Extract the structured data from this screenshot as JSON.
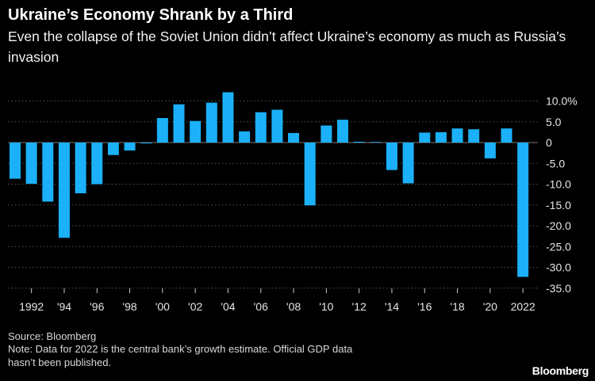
{
  "header": {
    "title": "Ukraine’s Economy Shrank by a Third",
    "subtitle": "Even the collapse of the Soviet Union didn’t affect Ukraine’s economy as much as Russia’s invasion"
  },
  "footer": {
    "source": "Source: Bloomberg",
    "note_line1": "Note: Data for 2022 is the central bank’s growth estimate. Official GDP data",
    "note_line2": "hasn’t been published.",
    "logo": "Bloomberg"
  },
  "chart_data": {
    "type": "bar",
    "title": "Ukraine’s Economy Shrank by a Third",
    "categories": [
      1991,
      1992,
      1993,
      1994,
      1995,
      1996,
      1997,
      1998,
      1999,
      2000,
      2001,
      2002,
      2003,
      2004,
      2005,
      2006,
      2007,
      2008,
      2009,
      2010,
      2011,
      2012,
      2013,
      2014,
      2015,
      2016,
      2017,
      2018,
      2019,
      2020,
      2021,
      2022
    ],
    "values": [
      -8.7,
      -9.9,
      -14.2,
      -22.9,
      -12.2,
      -10.0,
      -3.0,
      -1.9,
      -0.2,
      5.9,
      9.2,
      5.2,
      9.6,
      12.1,
      2.7,
      7.3,
      7.9,
      2.3,
      -15.1,
      4.1,
      5.5,
      0.2,
      0.0,
      -6.6,
      -9.8,
      2.4,
      2.5,
      3.4,
      3.2,
      -3.8,
      3.4,
      -32.3
    ],
    "ylim": [
      -35,
      12.5
    ],
    "y_ticks": [
      10,
      5,
      0,
      -5,
      -10,
      -15,
      -20,
      -25,
      -30,
      -35
    ],
    "y_tick_labels": [
      "10.0%",
      "5.0",
      "0",
      "-5.0",
      "-10.0",
      "-15.0",
      "-20.0",
      "-25.0",
      "-30.0",
      "-35.0"
    ],
    "x_tick_years": [
      1992,
      1994,
      1996,
      1998,
      2000,
      2002,
      2004,
      2006,
      2008,
      2010,
      2012,
      2014,
      2016,
      2018,
      2020,
      2022
    ],
    "x_tick_labels": [
      "1992",
      "'94",
      "'96",
      "'98",
      "'00",
      "'02",
      "'04",
      "'06",
      "'08",
      "'10",
      "'12",
      "'14",
      "'16",
      "'18",
      "'20",
      "2022"
    ],
    "y_axis_side": "right",
    "grid": true,
    "bar_color": "#1bb0f7",
    "grid_color": "#555555"
  }
}
